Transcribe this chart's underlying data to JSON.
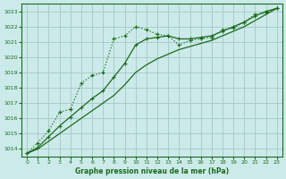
{
  "title": "Graphe pression niveau de la mer (hPa)",
  "bg_color": "#cceaea",
  "grid_color": "#aacccc",
  "line_color": "#1a6b1a",
  "xlim": [
    -0.5,
    23.5
  ],
  "ylim": [
    1013.5,
    1023.5
  ],
  "yticks": [
    1014,
    1015,
    1016,
    1017,
    1018,
    1019,
    1020,
    1021,
    1022,
    1023
  ],
  "xticks": [
    0,
    1,
    2,
    3,
    4,
    5,
    6,
    7,
    8,
    9,
    10,
    11,
    12,
    13,
    14,
    15,
    16,
    17,
    18,
    19,
    20,
    21,
    22,
    23
  ],
  "series_dotted": {
    "x": [
      0,
      1,
      2,
      3,
      4,
      5,
      6,
      7,
      8,
      9,
      10,
      11,
      12,
      13,
      14,
      15,
      16,
      17,
      18,
      19,
      20,
      21,
      22,
      23
    ],
    "y": [
      1013.7,
      1014.4,
      1015.2,
      1016.4,
      1016.6,
      1018.3,
      1018.8,
      1019.0,
      1021.2,
      1021.4,
      1022.0,
      1021.8,
      1021.5,
      1021.4,
      1020.8,
      1021.1,
      1021.2,
      1021.3,
      1021.8,
      1021.9,
      1022.3,
      1022.8,
      1022.9,
      1023.2
    ]
  },
  "series_line1": {
    "x": [
      0,
      1,
      2,
      3,
      4,
      5,
      6,
      7,
      8,
      9,
      10,
      11,
      12,
      13,
      14,
      15,
      16,
      17,
      18,
      19,
      20,
      21,
      22,
      23
    ],
    "y": [
      1013.7,
      1014.0,
      1014.5,
      1015.0,
      1015.5,
      1016.0,
      1016.5,
      1017.0,
      1017.5,
      1018.2,
      1019.0,
      1019.5,
      1019.9,
      1020.2,
      1020.5,
      1020.7,
      1020.9,
      1021.1,
      1021.4,
      1021.7,
      1022.0,
      1022.4,
      1022.8,
      1023.2
    ]
  },
  "series_line2": {
    "x": [
      0,
      1,
      2,
      3,
      4,
      5,
      6,
      7,
      8,
      9,
      10,
      11,
      12,
      13,
      14,
      15,
      16,
      17,
      18,
      19,
      20,
      21,
      22,
      23
    ],
    "y": [
      1013.7,
      1014.1,
      1014.8,
      1015.5,
      1016.1,
      1016.7,
      1017.3,
      1017.8,
      1018.7,
      1019.6,
      1020.8,
      1021.2,
      1021.3,
      1021.4,
      1021.2,
      1021.2,
      1021.3,
      1021.4,
      1021.7,
      1022.0,
      1022.3,
      1022.7,
      1023.0,
      1023.2
    ]
  }
}
